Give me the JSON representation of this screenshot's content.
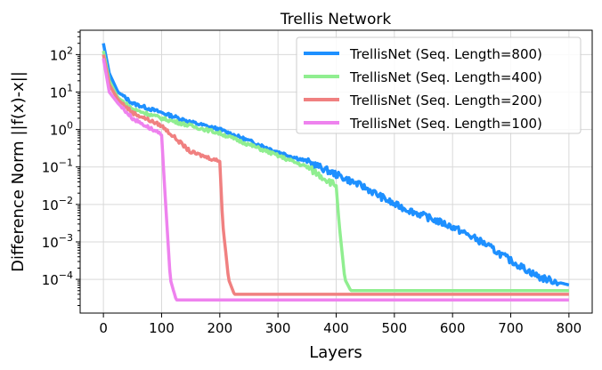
{
  "chart_data": {
    "type": "line",
    "title": "Trellis Network",
    "xlabel": "Layers",
    "ylabel": "Difference Norm ||f(x)-x||",
    "xlim": [
      -40,
      840
    ],
    "ylim_log10": [
      -4.9,
      2.65
    ],
    "yscale": "log",
    "grid": true,
    "legend_position": "top-right",
    "xticks": [
      0,
      100,
      200,
      300,
      400,
      500,
      600,
      700,
      800
    ],
    "yticks": [
      {
        "exp": 2,
        "label": "10^2"
      },
      {
        "exp": 1,
        "label": "10^1"
      },
      {
        "exp": 0,
        "label": "10^0"
      },
      {
        "exp": -1,
        "label": "10^-1"
      },
      {
        "exp": -2,
        "label": "10^-2"
      },
      {
        "exp": -3,
        "label": "10^-3"
      },
      {
        "exp": -4,
        "label": "10^-4"
      }
    ],
    "series": [
      {
        "name": "TrellisNet (Seq. Length=800)",
        "color": "#1e90ff",
        "x": [
          0,
          10,
          25,
          50,
          100,
          150,
          200,
          250,
          300,
          350,
          400,
          450,
          500,
          550,
          600,
          650,
          700,
          750,
          800
        ],
        "y_log10": [
          2.3,
          1.5,
          1.0,
          0.7,
          0.45,
          0.2,
          0.0,
          -0.3,
          -0.6,
          -0.85,
          -1.2,
          -1.55,
          -2.0,
          -2.3,
          -2.6,
          -3.0,
          -3.5,
          -3.95,
          -4.15
        ]
      },
      {
        "name": "TrellisNet (Seq. Length=400)",
        "color": "#90ee90",
        "x": [
          0,
          10,
          25,
          50,
          100,
          200,
          300,
          350,
          400,
          405,
          415,
          425,
          800
        ],
        "y_log10": [
          2.1,
          1.3,
          0.85,
          0.55,
          0.3,
          -0.1,
          -0.7,
          -1.0,
          -1.5,
          -2.5,
          -4.0,
          -4.3,
          -4.3
        ]
      },
      {
        "name": "TrellisNet (Seq. Length=200)",
        "color": "#f08080",
        "x": [
          0,
          10,
          25,
          50,
          100,
          150,
          190,
          200,
          205,
          215,
          225,
          800
        ],
        "y_log10": [
          2.0,
          1.2,
          0.8,
          0.45,
          0.1,
          -0.6,
          -0.8,
          -0.85,
          -2.5,
          -4.0,
          -4.4,
          -4.4
        ]
      },
      {
        "name": "TrellisNet (Seq. Length=100)",
        "color": "#ee82ee",
        "x": [
          0,
          10,
          25,
          50,
          90,
          100,
          105,
          115,
          125,
          800
        ],
        "y_log10": [
          1.9,
          1.0,
          0.7,
          0.3,
          -0.05,
          -0.15,
          -1.5,
          -4.0,
          -4.55,
          -4.55
        ]
      }
    ]
  }
}
